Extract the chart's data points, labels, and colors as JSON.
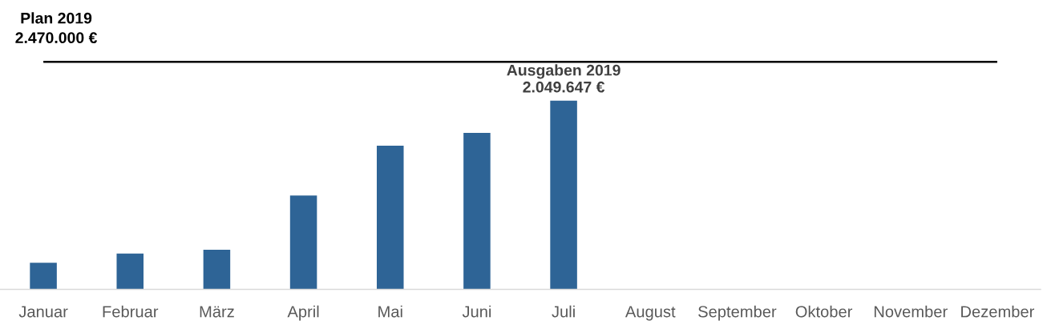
{
  "chart_data": {
    "type": "bar",
    "categories": [
      "Januar",
      "Februar",
      "März",
      "April",
      "Mai",
      "Juni",
      "Juli",
      "August",
      "September",
      "Oktober",
      "November",
      "Dezember"
    ],
    "values": [
      290000,
      390000,
      430000,
      1020000,
      1560000,
      1700000,
      2049647,
      null,
      null,
      null,
      null,
      null
    ],
    "color": "#2e6496",
    "value_labels": [
      null,
      null,
      null,
      null,
      null,
      null,
      "Ausgaben 2019\n2.049.647 €",
      null,
      null,
      null,
      null,
      null
    ],
    "tick_labels": "x",
    "grid": false,
    "ref_lines": [
      {
        "axis": "y",
        "value": 2470000,
        "label": "Plan 2019\n2.470.000 €",
        "color": "#000000",
        "line_style": "solid"
      }
    ]
  }
}
